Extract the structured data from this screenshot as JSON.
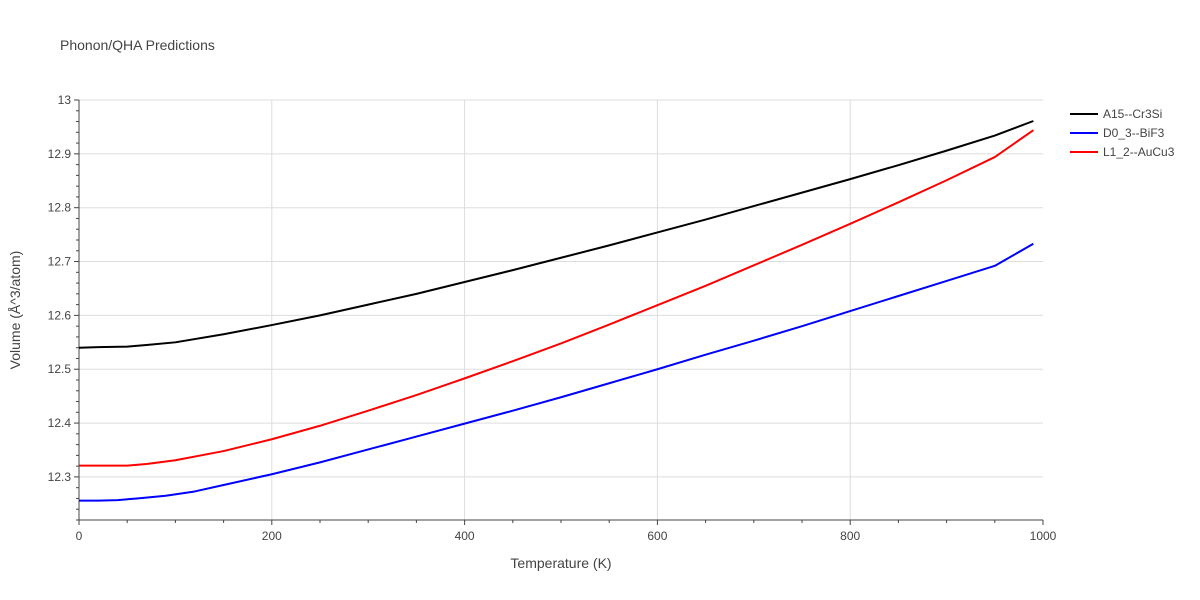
{
  "chart_data": {
    "type": "line",
    "title": "Phonon/QHA Predictions",
    "xlabel": "Temperature (K)",
    "ylabel": "Volume (Å^3/atom)",
    "xlim": [
      0,
      1000
    ],
    "ylim": [
      12.22,
      13.0
    ],
    "xticks": [
      0,
      200,
      400,
      600,
      800,
      1000
    ],
    "xtick_labels": [
      "0",
      "200",
      "400",
      "600",
      "800",
      "1000"
    ],
    "yticks": [
      12.3,
      12.4,
      12.5,
      12.6,
      12.7,
      12.8,
      12.9,
      13.0
    ],
    "ytick_labels": [
      "12.3",
      "12.4",
      "12.5",
      "12.6",
      "12.7",
      "12.8",
      "12.9",
      "13"
    ],
    "grid": true,
    "legend_position": "top-right-outside",
    "series": [
      {
        "name": "A15--Cr3Si",
        "color": "#000000",
        "x": [
          0,
          20,
          50,
          70,
          100,
          150,
          200,
          250,
          300,
          350,
          400,
          450,
          500,
          550,
          600,
          650,
          700,
          750,
          800,
          850,
          900,
          950,
          990
        ],
        "y": [
          12.54,
          12.541,
          12.542,
          12.545,
          12.55,
          12.565,
          12.582,
          12.6,
          12.62,
          12.64,
          12.662,
          12.684,
          12.707,
          12.73,
          12.754,
          12.778,
          12.803,
          12.828,
          12.853,
          12.879,
          12.906,
          12.934,
          12.961
        ]
      },
      {
        "name": "D0_3--BiF3",
        "color": "#0000ff",
        "x": [
          0,
          20,
          40,
          60,
          90,
          120,
          150,
          200,
          250,
          300,
          350,
          400,
          450,
          500,
          550,
          600,
          650,
          700,
          750,
          800,
          850,
          900,
          950,
          990
        ],
        "y": [
          12.256,
          12.256,
          12.257,
          12.26,
          12.265,
          12.273,
          12.285,
          12.305,
          12.327,
          12.351,
          12.375,
          12.399,
          12.423,
          12.448,
          12.474,
          12.5,
          12.527,
          12.553,
          12.58,
          12.608,
          12.636,
          12.664,
          12.692,
          12.733
        ]
      },
      {
        "name": "L1_2--AuCu3",
        "color": "#ff0000",
        "x": [
          0,
          20,
          50,
          70,
          100,
          150,
          200,
          250,
          300,
          350,
          400,
          450,
          500,
          550,
          600,
          650,
          700,
          750,
          800,
          850,
          900,
          950,
          990
        ],
        "y": [
          12.321,
          12.321,
          12.321,
          12.324,
          12.331,
          12.348,
          12.37,
          12.395,
          12.423,
          12.452,
          12.483,
          12.515,
          12.548,
          12.583,
          12.619,
          12.655,
          12.693,
          12.731,
          12.77,
          12.81,
          12.851,
          12.894,
          12.944
        ]
      }
    ]
  }
}
